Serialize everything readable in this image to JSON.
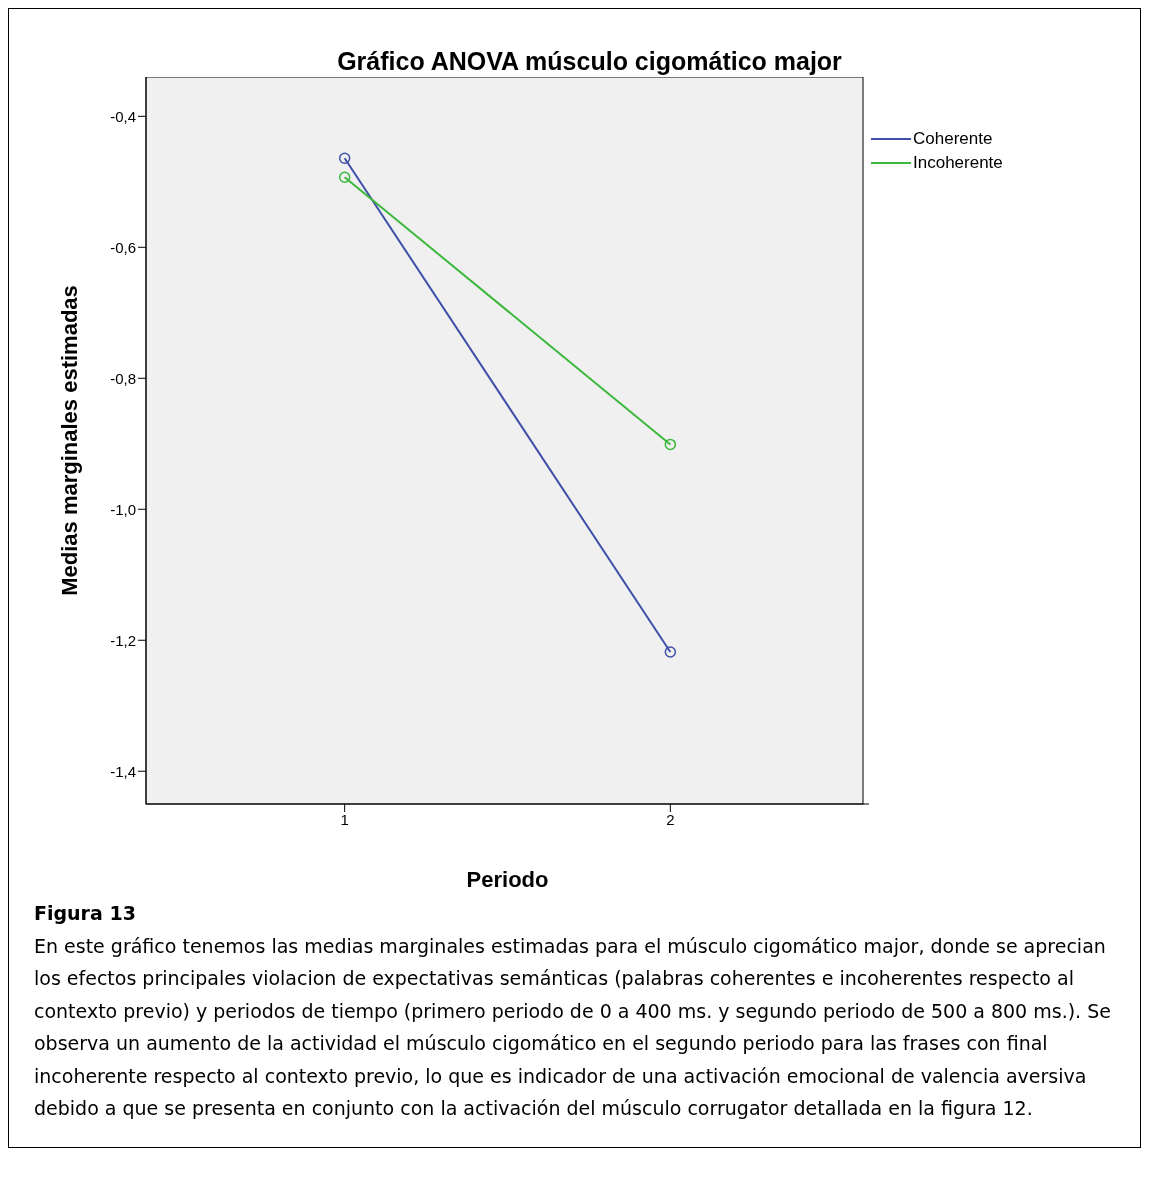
{
  "chart_data": {
    "type": "line",
    "title": "Gráfico ANOVA músculo cigomático major",
    "xlabel": "Periodo",
    "ylabel": "Medias marginales estimadas",
    "x": [
      1,
      2
    ],
    "series": [
      {
        "name": "Coherente",
        "color": "#3f4fa8",
        "values": [
          -0.464,
          -1.218
        ]
      },
      {
        "name": "Incoherente",
        "color": "#3cb83c",
        "values": [
          -0.493,
          -0.901
        ]
      }
    ],
    "xlim": [
      0.39,
      2.61
    ],
    "xticks": [
      1,
      2
    ],
    "ylim": [
      -1.45,
      -0.34
    ],
    "yticks": [
      {
        "value": -1.4,
        "label": "-1,4"
      },
      {
        "value": -1.2,
        "label": "-1,2"
      },
      {
        "value": -1.0,
        "label": "-1,0"
      },
      {
        "value": -0.8,
        "label": "-0,8"
      },
      {
        "value": -0.6,
        "label": "-0,6"
      },
      {
        "value": -0.4,
        "label": "-0,4"
      }
    ],
    "marker": "circle",
    "legend": "top right",
    "grid": false,
    "annotations": [
      "Figura 13",
      "En este gráfico tenemos las medias marginales estimadas para el músculo cigomático major, donde se aprecian los efectos principales violacion de expectativas semánticas (palabras coherentes e incoherentes respecto al contexto previo) y periodos de tiempo (primero periodo de 0 a 400 ms. y segundo periodo de 500 a 800 ms.). Se observa un aumento de la actividad el músculo cigomático en el segundo periodo para las frases con final incoherente respecto al contexto previo, lo que es indicador de una activación emocional de valencia aversiva debido a que se presenta  en conjunto con la activación del músculo corrugator detallada en la figura 12."
    ]
  }
}
